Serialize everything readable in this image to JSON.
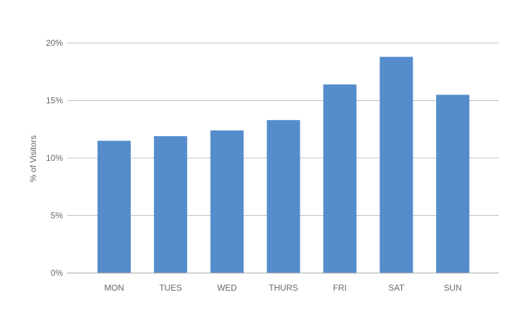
{
  "chart_data": {
    "type": "bar",
    "title": "",
    "xlabel": "",
    "ylabel": "% of Visitors",
    "categories": [
      "MON",
      "TUES",
      "WED",
      "THURS",
      "FRI",
      "SAT",
      "SUN"
    ],
    "values": [
      11.5,
      11.9,
      12.4,
      13.3,
      16.4,
      18.8,
      15.5
    ],
    "ylim": [
      0,
      20
    ],
    "yticks": [
      0,
      5,
      10,
      15,
      20
    ],
    "ytick_labels": [
      "0%",
      "5%",
      "10%",
      "15%",
      "20%"
    ],
    "grid": true,
    "legend": "none",
    "bar_color": "#558ccb",
    "grid_color": "#c0c0c0",
    "axis_color": "#a6a6a6"
  }
}
